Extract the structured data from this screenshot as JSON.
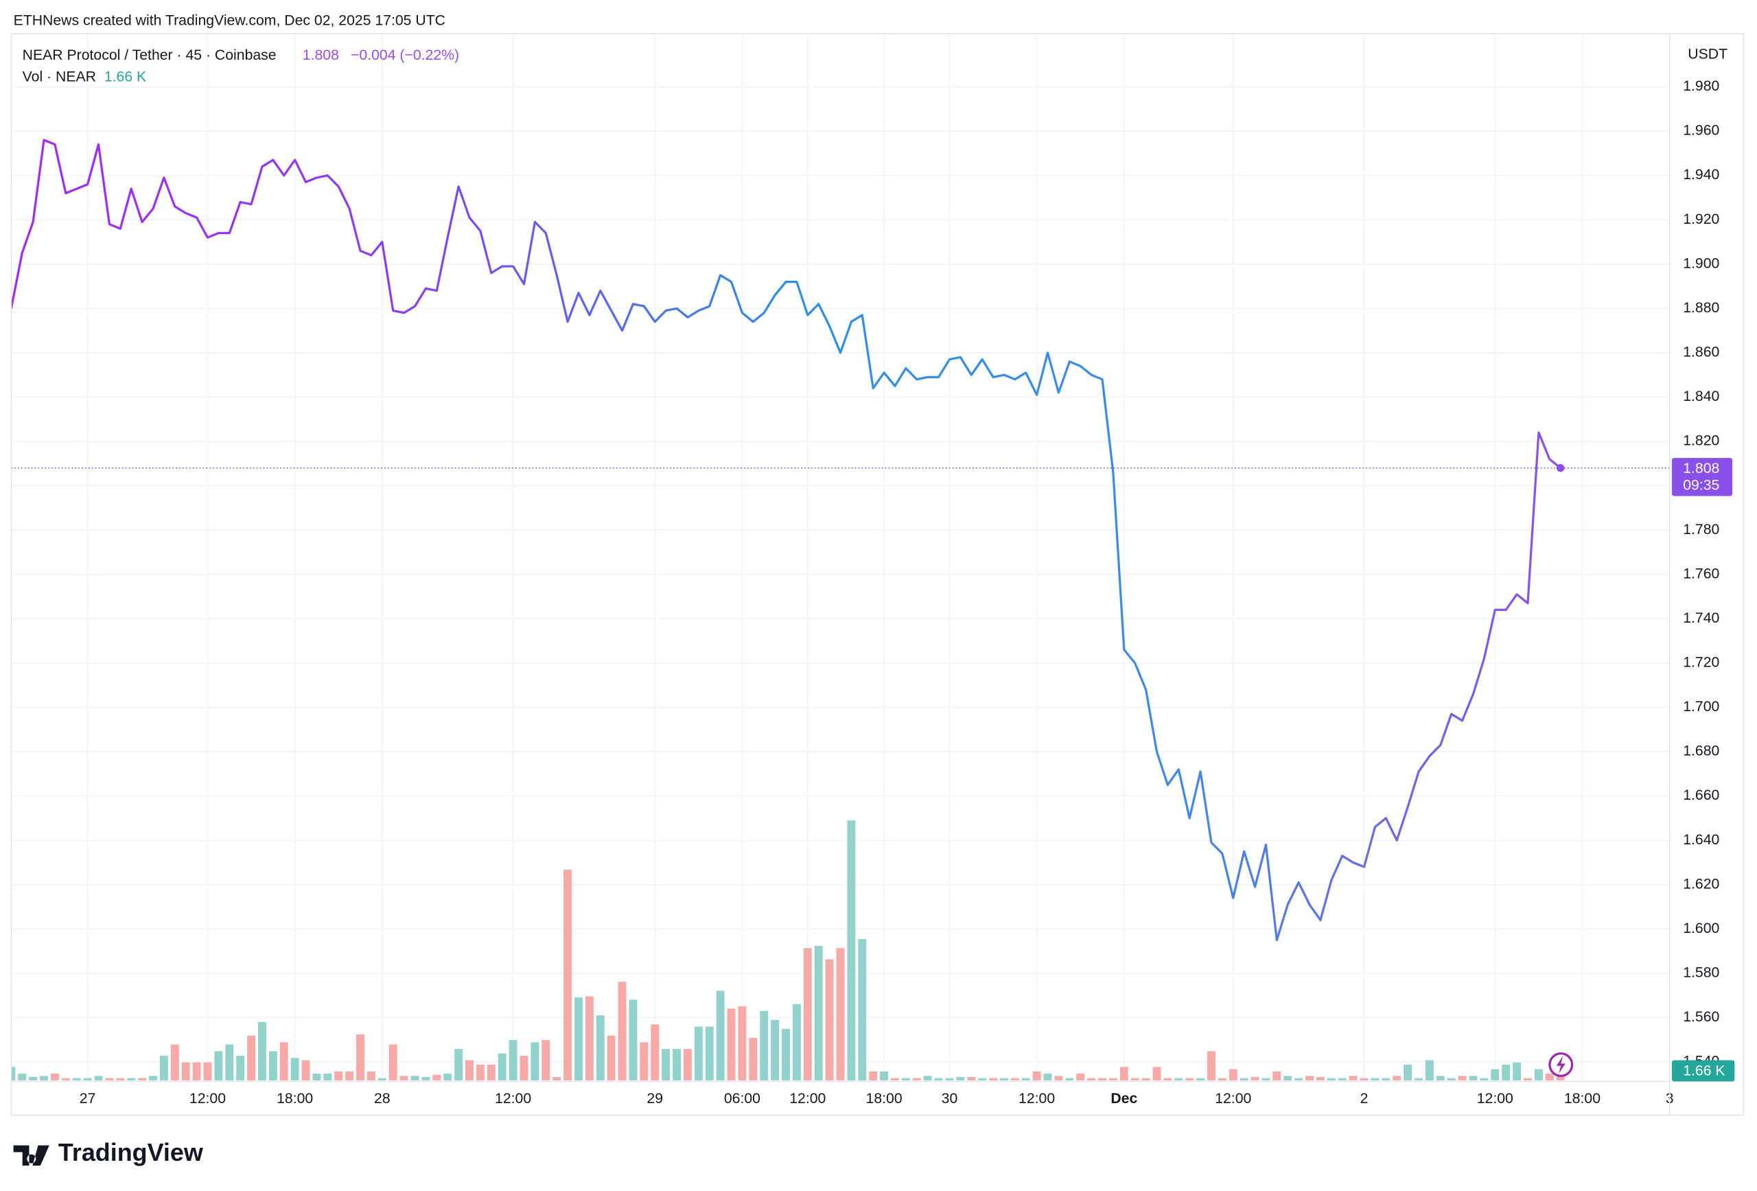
{
  "header": {
    "credit": "ETHNews created with TradingView.com, Dec 02, 2025 17:05 UTC",
    "symbol": "NEAR Protocol / Tether · 45 · Coinbase",
    "change": "−0.004 (−0.22%)",
    "currency": "USDT",
    "countdown": "09:35",
    "logo": "TradingView"
  },
  "chart_data": {
    "type": "line",
    "series": [
      {
        "name": "NEAR Protocol / Tether",
        "colors": [
          "#a52af3",
          "#8a3ff0",
          "#2f8fe6",
          "#3f8ae6",
          "#8e4fe8"
        ],
        "values": [
          1.88,
          1.905,
          1.919,
          1.956,
          1.954,
          1.932,
          1.934,
          1.936,
          1.954,
          1.918,
          1.916,
          1.934,
          1.919,
          1.925,
          1.939,
          1.926,
          1.923,
          1.921,
          1.912,
          1.914,
          1.914,
          1.928,
          1.927,
          1.944,
          1.947,
          1.94,
          1.947,
          1.937,
          1.939,
          1.94,
          1.935,
          1.925,
          1.906,
          1.904,
          1.91,
          1.879,
          1.878,
          1.881,
          1.889,
          1.888,
          1.912,
          1.935,
          1.921,
          1.915,
          1.896,
          1.899,
          1.899,
          1.891,
          1.919,
          1.914,
          1.895,
          1.874,
          1.887,
          1.877,
          1.888,
          1.879,
          1.87,
          1.882,
          1.881,
          1.874,
          1.879,
          1.88,
          1.876,
          1.879,
          1.881,
          1.895,
          1.892,
          1.878,
          1.874,
          1.878,
          1.886,
          1.892,
          1.892,
          1.877,
          1.882,
          1.872,
          1.86,
          1.874,
          1.877,
          1.844,
          1.851,
          1.845,
          1.853,
          1.848,
          1.849,
          1.849,
          1.857,
          1.858,
          1.85,
          1.857,
          1.849,
          1.85,
          1.848,
          1.851,
          1.841,
          1.86,
          1.842,
          1.856,
          1.854,
          1.85,
          1.848,
          1.806,
          1.726,
          1.72,
          1.708,
          1.68,
          1.665,
          1.672,
          1.65,
          1.671,
          1.639,
          1.634,
          1.614,
          1.635,
          1.619,
          1.638,
          1.595,
          1.611,
          1.621,
          1.611,
          1.604,
          1.622,
          1.633,
          1.63,
          1.628,
          1.646,
          1.65,
          1.64,
          1.655,
          1.671,
          1.678,
          1.683,
          1.697,
          1.694,
          1.706,
          1.722,
          1.744,
          1.744,
          1.751,
          1.747,
          1.824,
          1.812,
          1.808
        ]
      }
    ],
    "volume": {
      "name": "Vol · NEAR",
      "up_color": "#92d2cc",
      "down_color": "#f7a9a7",
      "label_color": "#26a69a",
      "last_label": "1.66 K",
      "values": [
        2.4,
        1.2,
        0.6,
        0.8,
        1.2,
        0.4,
        0.4,
        0.4,
        0.8,
        0.4,
        0.4,
        0.4,
        0.4,
        0.8,
        4.4,
        6.4,
        3.2,
        3.2,
        3.2,
        5.2,
        6.4,
        4.4,
        8,
        10.4,
        5.2,
        6.8,
        4,
        3.6,
        1.2,
        1.2,
        1.6,
        1.6,
        8.2,
        1.6,
        0.4,
        6.4,
        0.8,
        0.8,
        0.6,
        1,
        1.2,
        5.6,
        3.6,
        2.8,
        2.8,
        4.8,
        7.2,
        4.4,
        6.8,
        7.2,
        0.6,
        37.6,
        14.8,
        15,
        11.6,
        8,
        17.6,
        14.4,
        6.8,
        10,
        5.6,
        5.6,
        5.6,
        9.6,
        9.6,
        16,
        12.8,
        13.2,
        7.6,
        12.4,
        10.8,
        9.2,
        13.6,
        23.6,
        24,
        21.6,
        23.6,
        46.4,
        25.2,
        1.6,
        1.6,
        0.4,
        0.4,
        0.4,
        0.8,
        0.4,
        0.4,
        0.6,
        0.6,
        0.4,
        0.4,
        0.4,
        0.4,
        0.4,
        1.6,
        1.2,
        0.8,
        0.4,
        1.2,
        0.4,
        0.4,
        0.4,
        2.4,
        0.4,
        0.4,
        2.4,
        0.4,
        0.4,
        0.4,
        0.4,
        5.2,
        0.4,
        2,
        0.4,
        0.6,
        0.4,
        1.6,
        0.8,
        0.4,
        0.8,
        0.6,
        0.4,
        0.4,
        0.8,
        0.4,
        0.4,
        0.4,
        0.8,
        2.8,
        0.4,
        3.6,
        0.8,
        0.4,
        0.8,
        0.8,
        0.4,
        2,
        2.8,
        3.2,
        0.4,
        2,
        1.2,
        1.66
      ]
    },
    "xlim": [
      0,
      152
    ],
    "xticks": [
      {
        "value": 7,
        "label": "27"
      },
      {
        "value": 18,
        "label": "12:00"
      },
      {
        "value": 26,
        "label": "18:00"
      },
      {
        "value": 34,
        "label": "28"
      },
      {
        "value": 46,
        "label": "12:00"
      },
      {
        "value": 59,
        "label": "29"
      },
      {
        "value": 67,
        "label": "06:00"
      },
      {
        "value": 73,
        "label": "12:00"
      },
      {
        "value": 80,
        "label": "18:00"
      },
      {
        "value": 86,
        "label": "30"
      },
      {
        "value": 94,
        "label": "12:00"
      },
      {
        "value": 102,
        "label": "Dec"
      },
      {
        "value": 112,
        "label": "12:00"
      },
      {
        "value": 124,
        "label": "2"
      },
      {
        "value": 136,
        "label": "12:00"
      },
      {
        "value": 144,
        "label": "18:00"
      },
      {
        "value": 152,
        "label": "3"
      }
    ],
    "ylim": [
      1.516,
      2.004
    ],
    "yticks": [
      {
        "value": 1.54,
        "label": "1.540"
      },
      {
        "value": 1.56,
        "label": "1.560"
      },
      {
        "value": 1.58,
        "label": "1.580"
      },
      {
        "value": 1.6,
        "label": "1.600"
      },
      {
        "value": 1.62,
        "label": "1.620"
      },
      {
        "value": 1.64,
        "label": "1.640"
      },
      {
        "value": 1.66,
        "label": "1.660"
      },
      {
        "value": 1.68,
        "label": "1.680"
      },
      {
        "value": 1.7,
        "label": "1.700"
      },
      {
        "value": 1.72,
        "label": "1.720"
      },
      {
        "value": 1.74,
        "label": "1.740"
      },
      {
        "value": 1.76,
        "label": "1.760"
      },
      {
        "value": 1.78,
        "label": "1.780"
      },
      {
        "value": 1.8,
        "label": "1.800"
      },
      {
        "value": 1.82,
        "label": "1.820"
      },
      {
        "value": 1.84,
        "label": "1.840"
      },
      {
        "value": 1.86,
        "label": "1.860"
      },
      {
        "value": 1.88,
        "label": "1.880"
      },
      {
        "value": 1.9,
        "label": "1.900"
      },
      {
        "value": 1.92,
        "label": "1.920"
      },
      {
        "value": 1.94,
        "label": "1.940"
      },
      {
        "value": 1.96,
        "label": "1.960"
      },
      {
        "value": 1.98,
        "label": "1.980"
      }
    ],
    "grid": true,
    "price_line_color": "#8a4fe8"
  }
}
